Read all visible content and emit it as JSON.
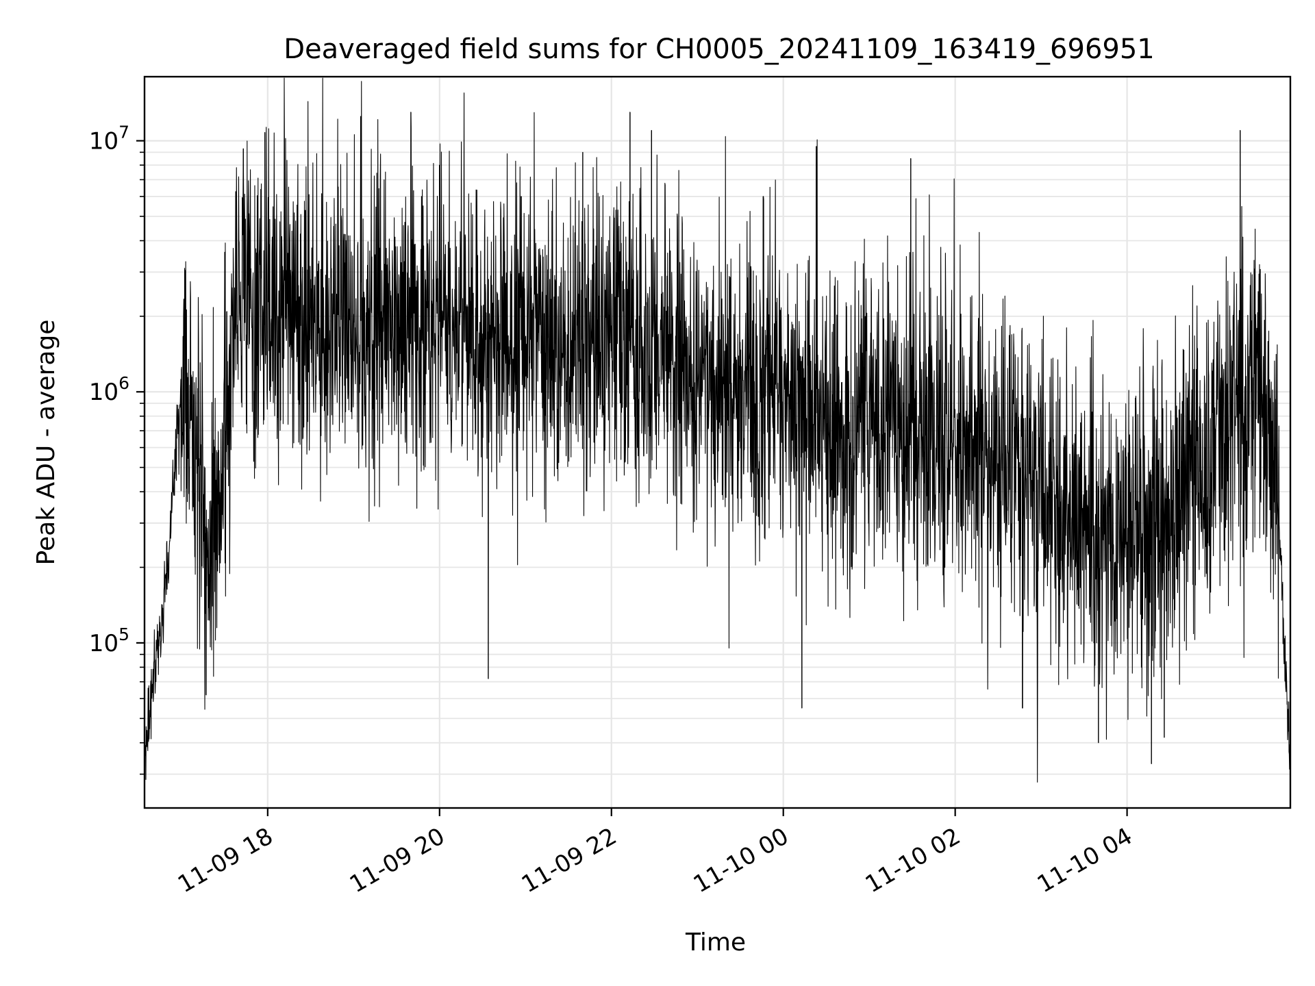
{
  "chart_data": {
    "type": "line",
    "title": "Deaveraged field sums for CH0005_20241109_163419_696951",
    "xlabel": "Time",
    "ylabel": "Peak ADU - average",
    "yscale": "log",
    "grid": true,
    "legend": "none",
    "line_color": "#000000",
    "grid_color": "#e6e6e6",
    "xlim": [
      "2024-11-09 16:34",
      "2024-11-10 05:54"
    ],
    "ylim": [
      22000,
      18000000
    ],
    "x_ticks": [
      {
        "value": "2024-11-09 18:00",
        "label": "11-09 18"
      },
      {
        "value": "2024-11-09 20:00",
        "label": "11-09 20"
      },
      {
        "value": "2024-11-09 22:00",
        "label": "11-09 22"
      },
      {
        "value": "2024-11-10 00:00",
        "label": "11-10 00"
      },
      {
        "value": "2024-11-10 02:00",
        "label": "11-10 02"
      },
      {
        "value": "2024-11-10 04:00",
        "label": "11-10 04"
      }
    ],
    "y_ticks": [
      {
        "value": 100000,
        "base": "10",
        "exp": "5"
      },
      {
        "value": 1000000,
        "base": "10",
        "exp": "6"
      },
      {
        "value": 10000000,
        "base": "10",
        "exp": "7"
      }
    ],
    "series": [
      {
        "points": [
          [
            "2024-11-09 16:34",
            35000
          ],
          [
            "2024-11-09 16:40",
            75000
          ],
          [
            "2024-11-09 16:45",
            110000
          ],
          [
            "2024-11-09 16:50",
            200000
          ],
          [
            "2024-11-09 16:55",
            500000
          ],
          [
            "2024-11-09 17:00",
            1000000
          ],
          [
            "2024-11-09 17:05",
            900000
          ],
          [
            "2024-11-09 17:10",
            600000
          ],
          [
            "2024-11-09 17:15",
            350000
          ],
          [
            "2024-11-09 17:20",
            220000
          ],
          [
            "2024-11-09 17:25",
            400000
          ],
          [
            "2024-11-09 17:30",
            500000
          ],
          [
            "2024-11-09 17:35",
            1800000
          ],
          [
            "2024-11-09 17:45",
            2500000
          ],
          [
            "2024-11-09 18:00",
            2200000
          ],
          [
            "2024-11-09 18:30",
            2000000
          ],
          [
            "2024-11-09 19:00",
            1900000
          ],
          [
            "2024-11-09 19:30",
            2000000
          ],
          [
            "2024-11-09 20:00",
            1900000
          ],
          [
            "2024-11-09 20:30",
            1700000
          ],
          [
            "2024-11-09 21:00",
            1600000
          ],
          [
            "2024-11-09 21:30",
            1500000
          ],
          [
            "2024-11-09 22:00",
            1500000
          ],
          [
            "2024-11-09 22:30",
            1400000
          ],
          [
            "2024-11-09 23:00",
            1100000
          ],
          [
            "2024-11-09 23:30",
            1000000
          ],
          [
            "2024-11-10 00:00",
            900000
          ],
          [
            "2024-11-10 00:30",
            800000
          ],
          [
            "2024-11-10 01:00",
            750000
          ],
          [
            "2024-11-10 01:30",
            700000
          ],
          [
            "2024-11-10 02:00",
            650000
          ],
          [
            "2024-11-10 02:30",
            550000
          ],
          [
            "2024-11-10 03:00",
            450000
          ],
          [
            "2024-11-10 03:30",
            300000
          ],
          [
            "2024-11-10 04:00",
            250000
          ],
          [
            "2024-11-10 04:30",
            300000
          ],
          [
            "2024-11-10 05:00",
            600000
          ],
          [
            "2024-11-10 05:30",
            1200000
          ],
          [
            "2024-11-10 05:45",
            400000
          ],
          [
            "2024-11-10 05:54",
            30000
          ]
        ],
        "noise_spread_decades": 0.55,
        "spikes": [
          [
            "2024-11-09 17:30",
            3600000
          ],
          [
            "2024-11-09 17:43",
            9300000
          ],
          [
            "2024-11-09 17:58",
            10800000
          ],
          [
            "2024-11-09 19:05",
            12500000
          ],
          [
            "2024-11-09 19:40",
            13000000
          ],
          [
            "2024-11-09 20:00",
            8000000
          ],
          [
            "2024-11-09 20:57",
            6000000
          ],
          [
            "2024-11-09 21:40",
            9000000
          ],
          [
            "2024-11-09 22:13",
            13000000
          ],
          [
            "2024-11-09 22:28",
            11000000
          ],
          [
            "2024-11-09 23:46",
            6000000
          ],
          [
            "2024-11-10 00:23",
            9500000
          ],
          [
            "2024-11-10 01:29",
            8500000
          ],
          [
            "2024-11-10 05:19",
            11000000
          ],
          [
            "2024-11-09 17:17",
            62000
          ],
          [
            "2024-11-09 20:34",
            72000
          ],
          [
            "2024-11-10 00:13",
            55000
          ],
          [
            "2024-11-10 02:47",
            55000
          ],
          [
            "2024-11-10 03:40",
            40000
          ],
          [
            "2024-11-10 04:17",
            33000
          ],
          [
            "2024-11-10 04:26",
            42000
          ],
          [
            "2024-11-10 05:54",
            30000
          ]
        ]
      }
    ]
  }
}
